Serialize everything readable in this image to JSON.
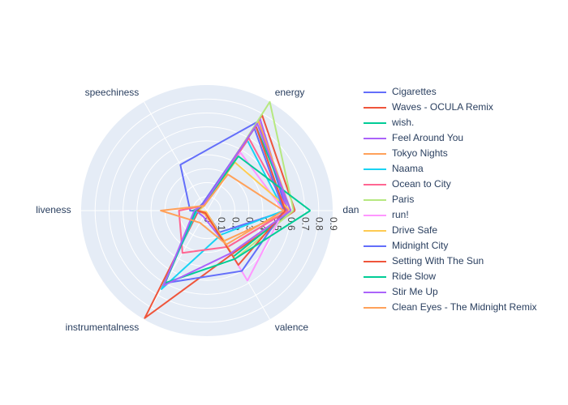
{
  "chart_data": {
    "type": "radar",
    "axes": [
      "dan",
      "energy",
      "speechiness",
      "liveness",
      "instrumentalness",
      "valence"
    ],
    "radial_range": [
      0,
      0.9
    ],
    "radial_ticks": [
      "0",
      "0.1",
      "0.2",
      "0.3",
      "0.4",
      "0.5",
      "0.6",
      "0.7",
      "0.8",
      "0.9"
    ],
    "grid": true,
    "legend_position": "right",
    "series": [
      {
        "name": "Cigarettes",
        "color": "#636efa",
        "values": [
          0.57,
          0.74,
          0.38,
          0.12,
          0.01,
          0.18
        ]
      },
      {
        "name": "Waves - OCULA Remix",
        "color": "#EF553B",
        "values": [
          0.63,
          0.79,
          0.05,
          0.06,
          0.89,
          0.36
        ]
      },
      {
        "name": "wish.",
        "color": "#00cc96",
        "values": [
          0.6,
          0.7,
          0.04,
          0.1,
          0.02,
          0.38
        ]
      },
      {
        "name": "Feel Around You",
        "color": "#ab63fa",
        "values": [
          0.58,
          0.76,
          0.05,
          0.08,
          0.05,
          0.3
        ]
      },
      {
        "name": "Tokyo Nights",
        "color": "#FFA15A",
        "values": [
          0.6,
          0.74,
          0.04,
          0.06,
          0.03,
          0.25
        ]
      },
      {
        "name": "Naama",
        "color": "#19d3f3",
        "values": [
          0.55,
          0.58,
          0.05,
          0.07,
          0.65,
          0.2
        ]
      },
      {
        "name": "Ocean to City",
        "color": "#FF6692",
        "values": [
          0.58,
          0.6,
          0.04,
          0.2,
          0.35,
          0.3
        ]
      },
      {
        "name": "Paris",
        "color": "#B6E880",
        "values": [
          0.62,
          0.9,
          0.04,
          0.06,
          0.02,
          0.4
        ]
      },
      {
        "name": "run!",
        "color": "#FF97FF",
        "values": [
          0.55,
          0.48,
          0.04,
          0.08,
          0.01,
          0.58
        ]
      },
      {
        "name": "Drive Safe",
        "color": "#FECB52",
        "values": [
          0.6,
          0.4,
          0.04,
          0.07,
          0.01,
          0.35
        ]
      },
      {
        "name": "Midnight City",
        "color": "#636efa",
        "values": [
          0.55,
          0.68,
          0.06,
          0.08,
          0.6,
          0.5
        ]
      },
      {
        "name": "Setting With The Sun",
        "color": "#EF553B",
        "values": [
          0.56,
          0.7,
          0.05,
          0.07,
          0.02,
          0.45
        ]
      },
      {
        "name": "Ride Slow",
        "color": "#00cc96",
        "values": [
          0.74,
          0.45,
          0.05,
          0.08,
          0.6,
          0.4
        ]
      },
      {
        "name": "Stir Me Up",
        "color": "#ab63fa",
        "values": [
          0.6,
          0.72,
          0.05,
          0.09,
          0.62,
          0.35
        ]
      },
      {
        "name": "Clean Eyes - The Midnight Remix",
        "color": "#FFA15A",
        "values": [
          0.55,
          0.3,
          0.04,
          0.33,
          0.1,
          0.28
        ]
      }
    ]
  }
}
